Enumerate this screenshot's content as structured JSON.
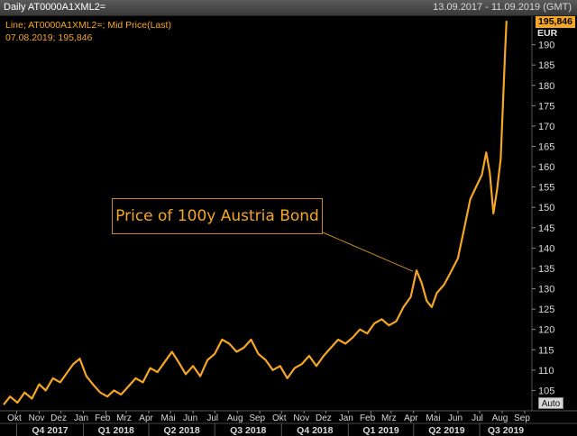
{
  "header": {
    "title": "Daily AT0000A1XML2=",
    "date_range": "13.09.2017 - 11.09.2019 (GMT)"
  },
  "legend": {
    "line1": "Line; AT0000A1XML2=; Mid Price(Last)",
    "line2": "07.08.2019; 195,846"
  },
  "annotation": "Price of 100y Austria Bond",
  "last_price_tag": "195,846",
  "unit": "EUR",
  "auto_button": "Auto",
  "colors": {
    "line": "#f5a623",
    "background": "#000000",
    "axis_text": "#d8d8d8"
  },
  "chart_data": {
    "type": "line",
    "ylim": [
      100,
      197
    ],
    "yticks": [
      105,
      110,
      115,
      120,
      125,
      130,
      135,
      140,
      145,
      150,
      155,
      160,
      165,
      170,
      175,
      180,
      185,
      190
    ],
    "ytick_labels": [
      "105",
      "110",
      "115",
      "120",
      "125",
      "130",
      "135",
      "140",
      "145",
      "150",
      "155",
      "160",
      "165",
      "170",
      "175",
      "180",
      "185",
      "190"
    ],
    "month_labels": [
      "Okt",
      "Nov",
      "Dez",
      "Jan",
      "Feb",
      "Mrz",
      "Apr",
      "Mai",
      "Jun",
      "Jul",
      "Aug",
      "Sep",
      "Okt",
      "Nov",
      "Dez",
      "Jan",
      "Feb",
      "Mrz",
      "Apr",
      "Mai",
      "Jun",
      "Jul",
      "Aug",
      "Sep"
    ],
    "quarter_labels": [
      "Q4 2017",
      "Q1 2018",
      "Q2 2018",
      "Q3 2018",
      "Q4 2018",
      "Q1 2019",
      "Q2 2019",
      "Q3 2019"
    ],
    "x_start": "2017-09-13",
    "x_end": "2019-09-11",
    "series": [
      {
        "name": "AT0000A1XML2=",
        "points": [
          [
            "2017-09-13",
            101.5
          ],
          [
            "2017-09-22",
            103.5
          ],
          [
            "2017-10-02",
            102.0
          ],
          [
            "2017-10-12",
            104.5
          ],
          [
            "2017-10-22",
            103.0
          ],
          [
            "2017-11-01",
            106.5
          ],
          [
            "2017-11-10",
            105.0
          ],
          [
            "2017-11-20",
            108.0
          ],
          [
            "2017-11-30",
            107.0
          ],
          [
            "2017-12-10",
            109.5
          ],
          [
            "2017-12-18",
            111.5
          ],
          [
            "2017-12-27",
            112.8
          ],
          [
            "2018-01-05",
            108.5
          ],
          [
            "2018-01-14",
            106.5
          ],
          [
            "2018-01-24",
            104.5
          ],
          [
            "2018-02-03",
            103.5
          ],
          [
            "2018-02-12",
            105.0
          ],
          [
            "2018-02-22",
            104.0
          ],
          [
            "2018-03-04",
            106.0
          ],
          [
            "2018-03-14",
            108.0
          ],
          [
            "2018-03-24",
            107.0
          ],
          [
            "2018-04-03",
            110.5
          ],
          [
            "2018-04-13",
            109.5
          ],
          [
            "2018-04-23",
            112.0
          ],
          [
            "2018-05-03",
            114.5
          ],
          [
            "2018-05-12",
            112.0
          ],
          [
            "2018-05-22",
            109.0
          ],
          [
            "2018-06-01",
            111.0
          ],
          [
            "2018-06-11",
            108.5
          ],
          [
            "2018-06-21",
            112.5
          ],
          [
            "2018-07-01",
            114.0
          ],
          [
            "2018-07-11",
            117.5
          ],
          [
            "2018-07-21",
            116.5
          ],
          [
            "2018-07-31",
            114.5
          ],
          [
            "2018-08-10",
            115.5
          ],
          [
            "2018-08-20",
            117.5
          ],
          [
            "2018-08-30",
            114.0
          ],
          [
            "2018-09-09",
            112.5
          ],
          [
            "2018-09-19",
            110.0
          ],
          [
            "2018-09-29",
            111.0
          ],
          [
            "2018-10-09",
            108.0
          ],
          [
            "2018-10-19",
            110.5
          ],
          [
            "2018-10-29",
            111.5
          ],
          [
            "2018-11-08",
            113.5
          ],
          [
            "2018-11-18",
            111.0
          ],
          [
            "2018-11-28",
            113.5
          ],
          [
            "2018-12-08",
            115.5
          ],
          [
            "2018-12-18",
            117.5
          ],
          [
            "2018-12-28",
            116.5
          ],
          [
            "2019-01-07",
            118.0
          ],
          [
            "2019-01-17",
            120.0
          ],
          [
            "2019-01-27",
            119.0
          ],
          [
            "2019-02-06",
            121.5
          ],
          [
            "2019-02-16",
            122.5
          ],
          [
            "2019-02-26",
            121.0
          ],
          [
            "2019-03-08",
            122.0
          ],
          [
            "2019-03-18",
            125.5
          ],
          [
            "2019-03-28",
            128.0
          ],
          [
            "2019-04-05",
            134.5
          ],
          [
            "2019-04-12",
            131.5
          ],
          [
            "2019-04-19",
            127.0
          ],
          [
            "2019-04-26",
            125.5
          ],
          [
            "2019-05-03",
            129.0
          ],
          [
            "2019-05-13",
            131.0
          ],
          [
            "2019-05-22",
            134.0
          ],
          [
            "2019-06-01",
            137.5
          ],
          [
            "2019-06-10",
            145.0
          ],
          [
            "2019-06-18",
            152.0
          ],
          [
            "2019-06-26",
            155.0
          ],
          [
            "2019-07-04",
            158.0
          ],
          [
            "2019-07-10",
            163.5
          ],
          [
            "2019-07-15",
            158.5
          ],
          [
            "2019-07-20",
            148.5
          ],
          [
            "2019-07-25",
            154.5
          ],
          [
            "2019-07-30",
            162.0
          ],
          [
            "2019-08-02",
            175.0
          ],
          [
            "2019-08-05",
            188.0
          ],
          [
            "2019-08-07",
            195.846
          ]
        ]
      }
    ]
  }
}
